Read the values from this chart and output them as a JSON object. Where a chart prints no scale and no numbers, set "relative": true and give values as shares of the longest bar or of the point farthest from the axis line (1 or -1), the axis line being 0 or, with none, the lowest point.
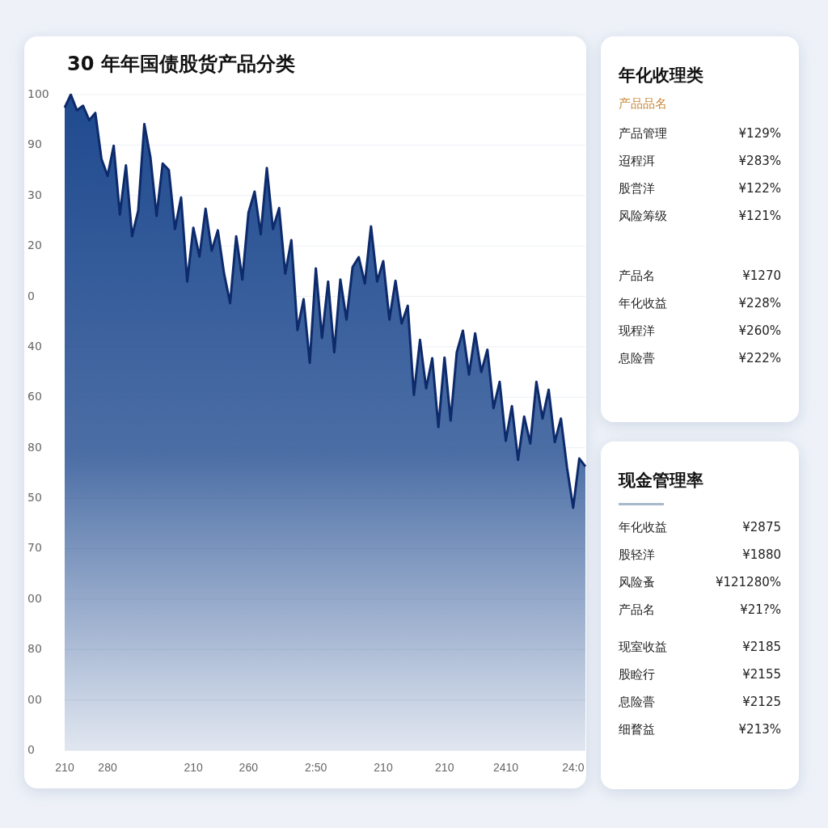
{
  "chart_data": [
    {
      "type": "area",
      "title": "30 年年国债股货产品分类",
      "relative": true,
      "categories": [
        "210",
        null,
        null,
        null,
        null,
        null,
        null,
        "280",
        null,
        null,
        null,
        null,
        null,
        null,
        null,
        null,
        null,
        null,
        null,
        null,
        null,
        "210",
        null,
        null,
        null,
        null,
        null,
        null,
        null,
        null,
        "260",
        null,
        null,
        null,
        null,
        null,
        null,
        null,
        null,
        null,
        null,
        "2:50",
        null,
        null,
        null,
        null,
        null,
        null,
        null,
        null,
        null,
        null,
        "210",
        null,
        null,
        null,
        null,
        null,
        null,
        null,
        null,
        null,
        "210",
        null,
        null,
        null,
        null,
        null,
        null,
        null,
        null,
        null,
        "2410",
        null,
        null,
        null,
        null,
        null,
        null,
        null,
        null,
        null,
        null,
        "24:0",
        null,
        null
      ],
      "series": [
        {
          "color": "#1f4a8f",
          "values": [
            0.98,
            1,
            0.976,
            0.983,
            0.961,
            0.972,
            0.902,
            0.876,
            0.922,
            0.817,
            0.892,
            0.784,
            0.823,
            0.955,
            0.904,
            0.815,
            0.895,
            0.885,
            0.795,
            0.843,
            0.715,
            0.797,
            0.753,
            0.826,
            0.762,
            0.793,
            0.728,
            0.682,
            0.784,
            0.718,
            0.82,
            0.852,
            0.787,
            0.888,
            0.795,
            0.827,
            0.727,
            0.778,
            0.641,
            0.688,
            0.591,
            0.735,
            0.629,
            0.715,
            0.607,
            0.718,
            0.657,
            0.737,
            0.752,
            0.712,
            0.799,
            0.715,
            0.746,
            0.657,
            0.716,
            0.651,
            0.678,
            0.542,
            0.626,
            0.552,
            0.598,
            0.493,
            0.599,
            0.503,
            0.607,
            0.64,
            0.573,
            0.636,
            0.577,
            0.611,
            0.522,
            0.562,
            0.472,
            0.525,
            0.443,
            0.509,
            0.468,
            0.562,
            0.506,
            0.55,
            0.47,
            0.506,
            0.431,
            0.37,
            0.445,
            0.433
          ]
        }
      ],
      "annotations": [
        "100",
        "90",
        "30",
        "20",
        "0",
        "40",
        "60",
        "80",
        "50",
        "70",
        "00",
        "80",
        "00",
        "0"
      ],
      "grid": "y",
      "marker": "none",
      "line_style": "solid"
    },
    {
      "type": "other",
      "title": "年化收理类",
      "subtitle": "产品品名",
      "annotations": [
        "产品管理",
        "¥129%",
        "迢程洱",
        "¥283%",
        "股営洋",
        "¥122%",
        "风险筹级",
        "¥121%",
        "产品名",
        "¥1270",
        "年化收益",
        "¥228%",
        "现程洋",
        "¥260%",
        "息险瞢",
        "¥222%"
      ]
    },
    {
      "type": "other",
      "title": "现金管理率",
      "annotations": [
        "年化收益",
        "¥2875",
        "股轻洋",
        "¥1880",
        "风险蚤",
        "¥121280%",
        "产品名",
        "¥21?%",
        "现室收益",
        "¥2185",
        "股睑行",
        "¥2155",
        "息险瞢",
        "¥2125",
        "细瞀益",
        "¥213%"
      ]
    }
  ]
}
